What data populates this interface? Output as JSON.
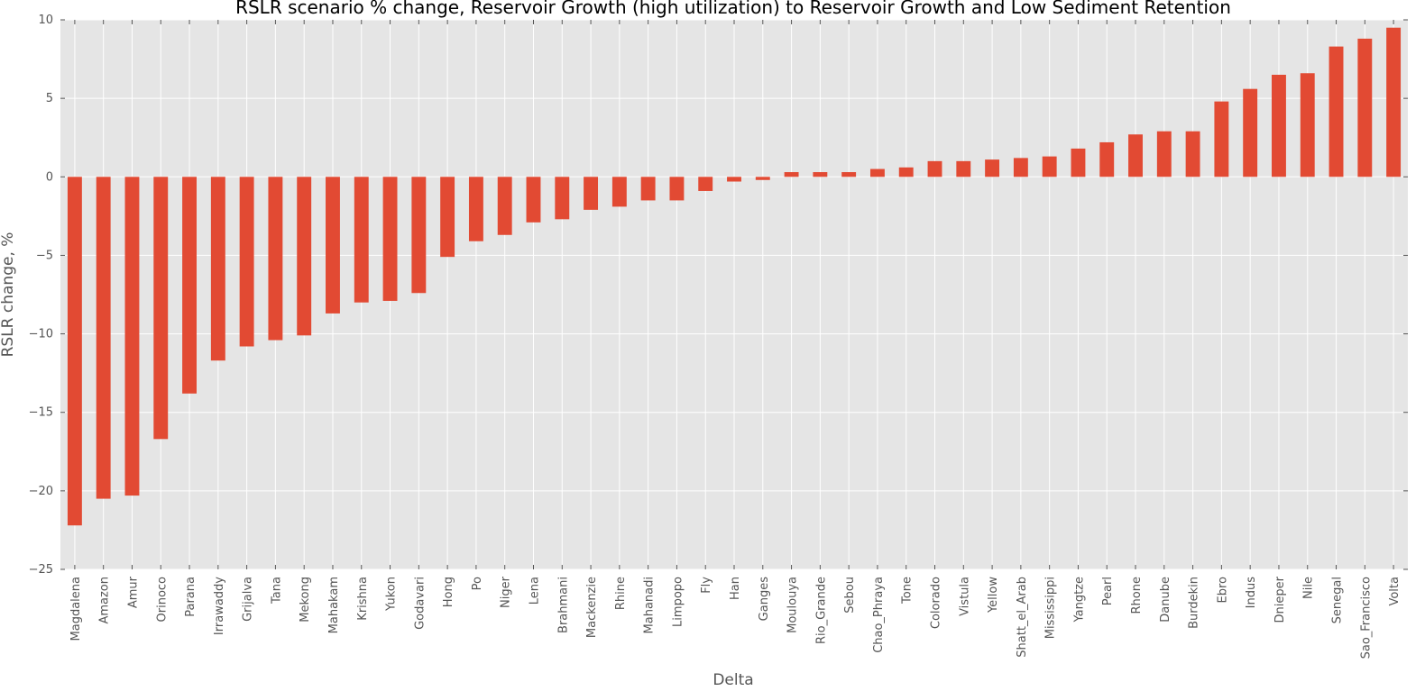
{
  "chart_data": {
    "type": "bar",
    "title": "RSLR scenario % change, Reservoir Growth (high utilization) to Reservoir Growth and Low Sediment Retention",
    "xlabel": "Delta",
    "ylabel": "RSLR change, %",
    "ylim": [
      -25,
      10
    ],
    "yticks": [
      10,
      5,
      0,
      -5,
      -10,
      -15,
      -20,
      -25
    ],
    "ytick_labels": [
      "10",
      "5",
      "0",
      "−5",
      "−10",
      "−15",
      "−20",
      "−25"
    ],
    "grid": true,
    "legend": "none",
    "colors": {
      "bar": "#E24A33",
      "plot_bg": "#E5E5E5",
      "grid": "#FFFFFF",
      "text": "#555555"
    },
    "categories": [
      "Magdalena",
      "Amazon",
      "Amur",
      "Orinoco",
      "Parana",
      "Irrawaddy",
      "Grijalva",
      "Tana",
      "Mekong",
      "Mahakam",
      "Krishna",
      "Yukon",
      "Godavari",
      "Hong",
      "Po",
      "Niger",
      "Lena",
      "Brahmani",
      "Mackenzie",
      "Rhine",
      "Mahanadi",
      "Limpopo",
      "Fly",
      "Han",
      "Ganges",
      "Moulouya",
      "Rio_Grande",
      "Sebou",
      "Chao_Phraya",
      "Tone",
      "Colorado",
      "Vistula",
      "Yellow",
      "Shatt_el_Arab",
      "Mississippi",
      "Yangtze",
      "Pearl",
      "Rhone",
      "Danube",
      "Burdekin",
      "Ebro",
      "Indus",
      "Dnieper",
      "Nile",
      "Senegal",
      "Sao_Francisco",
      "Volta"
    ],
    "values": [
      -22.2,
      -20.5,
      -20.3,
      -16.7,
      -13.8,
      -11.7,
      -10.8,
      -10.4,
      -10.1,
      -8.7,
      -8.0,
      -7.9,
      -7.4,
      -5.1,
      -4.1,
      -3.7,
      -2.9,
      -2.7,
      -2.1,
      -1.9,
      -1.5,
      -1.5,
      -0.9,
      -0.3,
      -0.2,
      0.3,
      0.3,
      0.3,
      0.5,
      0.6,
      1.0,
      1.0,
      1.1,
      1.2,
      1.3,
      1.8,
      2.2,
      2.7,
      2.9,
      2.9,
      4.8,
      5.6,
      6.5,
      6.6,
      8.3,
      8.8,
      9.5
    ]
  }
}
